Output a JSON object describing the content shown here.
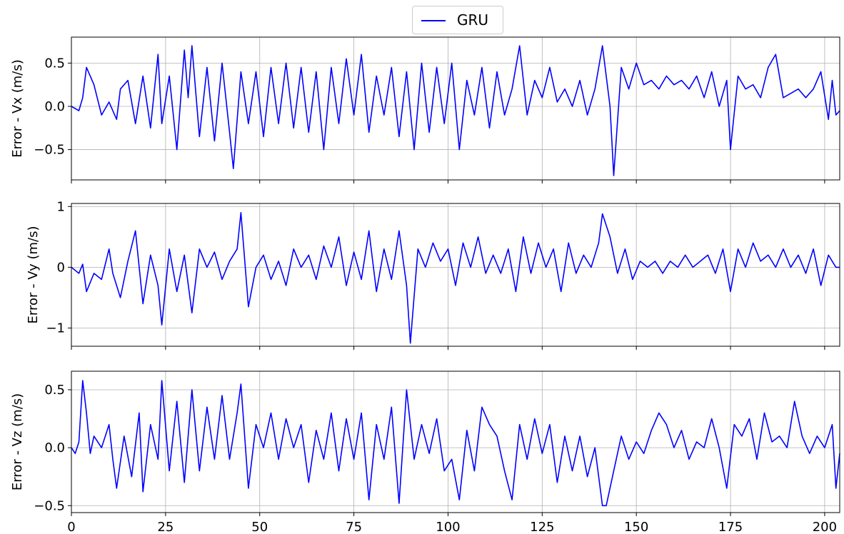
{
  "legend": {
    "label": "GRU",
    "color": "#0000ff"
  },
  "chart_data": [
    {
      "type": "line",
      "ylabel": "Error - Vx (m/s)",
      "xlim": [
        0,
        204
      ],
      "ylim": [
        -0.85,
        0.8
      ],
      "yticks": [
        0.5,
        0.0,
        -0.5
      ],
      "ytick_labels": [
        "0.5",
        "0.0",
        "−0.5"
      ],
      "xticks": [
        0,
        25,
        50,
        75,
        100,
        125,
        150,
        175,
        200
      ],
      "grid": true,
      "series": [
        {
          "name": "GRU",
          "color": "#0000ff",
          "x": [
            0,
            2,
            3,
            4,
            6,
            8,
            10,
            12,
            13,
            15,
            17,
            19,
            21,
            23,
            24,
            26,
            28,
            30,
            31,
            32,
            34,
            36,
            38,
            40,
            42,
            43,
            45,
            47,
            49,
            51,
            53,
            55,
            57,
            59,
            61,
            63,
            65,
            67,
            69,
            71,
            73,
            75,
            77,
            79,
            81,
            83,
            85,
            87,
            89,
            91,
            93,
            95,
            97,
            99,
            101,
            103,
            105,
            107,
            109,
            111,
            113,
            115,
            117,
            119,
            121,
            123,
            125,
            127,
            129,
            131,
            133,
            135,
            137,
            139,
            141,
            143,
            144,
            146,
            148,
            150,
            152,
            154,
            156,
            158,
            160,
            162,
            164,
            166,
            168,
            170,
            172,
            174,
            175,
            177,
            179,
            181,
            183,
            185,
            187,
            189,
            191,
            193,
            195,
            197,
            199,
            201,
            202,
            203,
            204
          ],
          "values": [
            0.0,
            -0.05,
            0.1,
            0.45,
            0.25,
            -0.1,
            0.05,
            -0.15,
            0.2,
            0.3,
            -0.2,
            0.35,
            -0.25,
            0.6,
            -0.2,
            0.35,
            -0.5,
            0.65,
            0.1,
            0.7,
            -0.35,
            0.45,
            -0.4,
            0.5,
            -0.3,
            -0.72,
            0.4,
            -0.2,
            0.4,
            -0.35,
            0.45,
            -0.2,
            0.5,
            -0.25,
            0.45,
            -0.3,
            0.4,
            -0.5,
            0.45,
            -0.2,
            0.55,
            -0.1,
            0.6,
            -0.3,
            0.35,
            -0.1,
            0.45,
            -0.35,
            0.4,
            -0.5,
            0.5,
            -0.3,
            0.45,
            -0.2,
            0.5,
            -0.5,
            0.3,
            -0.1,
            0.45,
            -0.25,
            0.4,
            -0.1,
            0.2,
            0.7,
            -0.1,
            0.3,
            0.1,
            0.45,
            0.05,
            0.2,
            0.0,
            0.3,
            -0.1,
            0.2,
            0.7,
            0.0,
            -0.8,
            0.45,
            0.2,
            0.5,
            0.25,
            0.3,
            0.2,
            0.35,
            0.25,
            0.3,
            0.2,
            0.35,
            0.1,
            0.4,
            0.0,
            0.3,
            -0.5,
            0.35,
            0.2,
            0.25,
            0.1,
            0.45,
            0.6,
            0.1,
            0.15,
            0.2,
            0.1,
            0.2,
            0.4,
            -0.15,
            0.3,
            -0.1,
            -0.05
          ]
        }
      ]
    },
    {
      "type": "line",
      "ylabel": "Error - Vy (m/s)",
      "xlim": [
        0,
        204
      ],
      "ylim": [
        -1.3,
        1.05
      ],
      "yticks": [
        1,
        0,
        -1
      ],
      "ytick_labels": [
        "1",
        "0",
        "−1"
      ],
      "xticks": [
        0,
        25,
        50,
        75,
        100,
        125,
        150,
        175,
        200
      ],
      "grid": true,
      "series": [
        {
          "name": "GRU",
          "color": "#0000ff",
          "x": [
            0,
            2,
            3,
            4,
            6,
            8,
            10,
            11,
            13,
            15,
            17,
            19,
            21,
            23,
            24,
            26,
            28,
            30,
            32,
            34,
            36,
            38,
            40,
            42,
            44,
            45,
            47,
            49,
            51,
            53,
            55,
            57,
            59,
            61,
            63,
            65,
            67,
            69,
            71,
            73,
            75,
            77,
            79,
            81,
            83,
            85,
            87,
            89,
            90,
            92,
            94,
            96,
            98,
            100,
            102,
            104,
            106,
            108,
            110,
            112,
            114,
            116,
            118,
            120,
            122,
            124,
            126,
            128,
            130,
            132,
            134,
            136,
            138,
            140,
            141,
            143,
            145,
            147,
            149,
            151,
            153,
            155,
            157,
            159,
            161,
            163,
            165,
            167,
            169,
            171,
            173,
            175,
            177,
            179,
            181,
            183,
            185,
            187,
            189,
            191,
            193,
            195,
            197,
            199,
            201,
            203,
            204
          ],
          "values": [
            0.0,
            -0.1,
            0.05,
            -0.4,
            -0.1,
            -0.2,
            0.3,
            -0.1,
            -0.5,
            0.1,
            0.6,
            -0.6,
            0.2,
            -0.3,
            -0.95,
            0.3,
            -0.4,
            0.2,
            -0.75,
            0.3,
            0.0,
            0.25,
            -0.2,
            0.1,
            0.3,
            0.9,
            -0.65,
            0.0,
            0.2,
            -0.2,
            0.1,
            -0.3,
            0.3,
            0.0,
            0.2,
            -0.2,
            0.35,
            0.0,
            0.5,
            -0.3,
            0.25,
            -0.2,
            0.6,
            -0.4,
            0.3,
            -0.2,
            0.6,
            -0.3,
            -1.25,
            0.3,
            0.0,
            0.4,
            0.1,
            0.3,
            -0.3,
            0.4,
            0.0,
            0.5,
            -0.1,
            0.2,
            -0.1,
            0.3,
            -0.4,
            0.5,
            -0.1,
            0.4,
            0.0,
            0.3,
            -0.4,
            0.4,
            -0.1,
            0.2,
            0.0,
            0.4,
            0.88,
            0.5,
            -0.1,
            0.3,
            -0.2,
            0.1,
            0.0,
            0.1,
            -0.1,
            0.1,
            0.0,
            0.2,
            0.0,
            0.1,
            0.2,
            -0.1,
            0.3,
            -0.4,
            0.3,
            0.0,
            0.4,
            0.1,
            0.2,
            0.0,
            0.3,
            0.0,
            0.2,
            -0.1,
            0.3,
            -0.3,
            0.2,
            0.0,
            0.0
          ]
        }
      ]
    },
    {
      "type": "line",
      "ylabel": "Error - Vz (m/s)",
      "xlim": [
        0,
        204
      ],
      "ylim": [
        -0.56,
        0.66
      ],
      "yticks": [
        0.5,
        0.0,
        -0.5
      ],
      "ytick_labels": [
        "0.5",
        "0.0",
        "−0.5"
      ],
      "xticks": [
        0,
        25,
        50,
        75,
        100,
        125,
        150,
        175,
        200
      ],
      "xtick_labels": [
        "0",
        "25",
        "50",
        "75",
        "100",
        "125",
        "150",
        "175",
        "200"
      ],
      "grid": true,
      "series": [
        {
          "name": "GRU",
          "color": "#0000ff",
          "x": [
            0,
            1,
            2,
            3,
            4,
            5,
            6,
            8,
            10,
            11,
            12,
            14,
            16,
            18,
            19,
            21,
            23,
            24,
            26,
            28,
            30,
            32,
            34,
            36,
            38,
            40,
            42,
            44,
            45,
            47,
            49,
            51,
            53,
            55,
            57,
            59,
            61,
            63,
            65,
            67,
            69,
            71,
            73,
            75,
            77,
            79,
            81,
            83,
            85,
            87,
            89,
            91,
            93,
            95,
            97,
            99,
            101,
            103,
            105,
            107,
            109,
            111,
            113,
            115,
            117,
            119,
            121,
            123,
            125,
            127,
            129,
            131,
            133,
            135,
            137,
            139,
            141,
            142,
            144,
            146,
            148,
            150,
            152,
            154,
            156,
            158,
            160,
            162,
            164,
            166,
            168,
            170,
            172,
            174,
            176,
            178,
            180,
            182,
            184,
            186,
            188,
            190,
            192,
            194,
            196,
            198,
            200,
            202,
            203,
            204
          ],
          "values": [
            0.0,
            -0.05,
            0.05,
            0.58,
            0.3,
            -0.05,
            0.1,
            0.0,
            0.2,
            -0.1,
            -0.35,
            0.1,
            -0.25,
            0.3,
            -0.38,
            0.2,
            -0.1,
            0.58,
            -0.2,
            0.4,
            -0.3,
            0.5,
            -0.2,
            0.35,
            -0.1,
            0.45,
            -0.1,
            0.3,
            0.55,
            -0.35,
            0.2,
            0.0,
            0.3,
            -0.1,
            0.25,
            0.0,
            0.2,
            -0.3,
            0.15,
            -0.1,
            0.3,
            -0.2,
            0.25,
            -0.1,
            0.3,
            -0.45,
            0.2,
            -0.1,
            0.35,
            -0.48,
            0.5,
            -0.1,
            0.2,
            -0.05,
            0.25,
            -0.2,
            -0.1,
            -0.45,
            0.15,
            -0.2,
            0.35,
            0.2,
            0.1,
            -0.2,
            -0.45,
            0.2,
            -0.1,
            0.25,
            -0.05,
            0.2,
            -0.3,
            0.1,
            -0.2,
            0.1,
            -0.25,
            0.0,
            -0.5,
            -0.5,
            -0.2,
            0.1,
            -0.1,
            0.05,
            -0.05,
            0.15,
            0.3,
            0.2,
            0.0,
            0.15,
            -0.1,
            0.05,
            0.0,
            0.25,
            0.0,
            -0.35,
            0.2,
            0.1,
            0.25,
            -0.1,
            0.3,
            0.05,
            0.1,
            0.0,
            0.4,
            0.1,
            -0.05,
            0.1,
            0.0,
            0.2,
            -0.35,
            -0.05
          ]
        }
      ]
    }
  ]
}
